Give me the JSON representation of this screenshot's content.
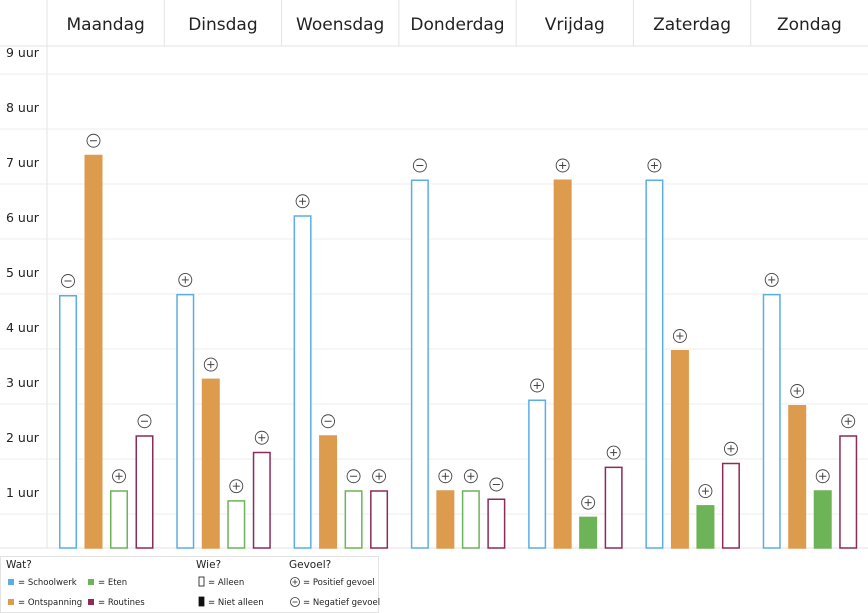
{
  "chart_data": {
    "type": "bar",
    "categories": [
      "Maandag",
      "Dinsdag",
      "Woensdag",
      "Donderdag",
      "Vrijdag",
      "Zaterdag",
      "Zondag"
    ],
    "y_tick_labels": [
      "9 uur",
      "8 uur",
      "7 uur",
      "6 uur",
      "5 uur",
      "4 uur",
      "3 uur",
      "2 uur",
      "1 uur"
    ],
    "y_ticks": [
      9,
      8,
      7,
      6,
      5,
      4,
      3,
      2,
      1
    ],
    "ylim": [
      0,
      9.3
    ],
    "grid": true,
    "series": [
      {
        "key": "schoolwerk",
        "color": "#5aaee3",
        "values": [
          4.6,
          4.62,
          6.05,
          6.7,
          2.7,
          6.7,
          4.62
        ],
        "alleen": [
          true,
          true,
          true,
          true,
          true,
          true,
          true
        ],
        "gevoel": [
          "-",
          "+",
          "+",
          "-",
          "+",
          "+",
          "+"
        ]
      },
      {
        "key": "ontspanning",
        "color": "#dd9b4e",
        "values": [
          7.15,
          3.08,
          2.05,
          1.05,
          6.7,
          3.6,
          2.6
        ],
        "alleen": [
          false,
          false,
          false,
          false,
          false,
          false,
          false
        ],
        "gevoel": [
          "-",
          "+",
          "-",
          "+",
          "+",
          "+",
          "+"
        ]
      },
      {
        "key": "eten",
        "color": "#6db357",
        "values": [
          1.05,
          0.87,
          1.05,
          1.05,
          0.57,
          0.78,
          1.05
        ],
        "alleen": [
          true,
          true,
          true,
          true,
          false,
          false,
          false
        ],
        "gevoel": [
          "+",
          "+",
          "-",
          "+",
          "+",
          "+",
          "+"
        ]
      },
      {
        "key": "routines",
        "color": "#8c2a5a",
        "values": [
          2.05,
          1.75,
          1.05,
          0.9,
          1.48,
          1.55,
          2.05
        ],
        "alleen": [
          true,
          true,
          true,
          true,
          true,
          true,
          true
        ],
        "gevoel": [
          "-",
          "+",
          "+",
          "-",
          "+",
          "+",
          "+"
        ]
      }
    ]
  },
  "legend": {
    "wat": {
      "title": "Wat?",
      "items": [
        {
          "label": "= Schoolwerk",
          "color": "#5aaee3"
        },
        {
          "label": "= Eten",
          "color": "#6db357"
        },
        {
          "label": "= Ontspanning",
          "color": "#dd9b4e"
        },
        {
          "label": "= Routines",
          "color": "#8c2a5a"
        }
      ]
    },
    "wie": {
      "title": "Wie?",
      "items": [
        {
          "label": "= Alleen",
          "style": "outline"
        },
        {
          "label": "= Niet alleen",
          "style": "filled"
        }
      ]
    },
    "gevoel": {
      "title": "Gevoel?",
      "items": [
        {
          "label": "= Positief gevoel",
          "symbol": "+"
        },
        {
          "label": "= Negatief gevoel",
          "symbol": "-"
        }
      ]
    }
  }
}
